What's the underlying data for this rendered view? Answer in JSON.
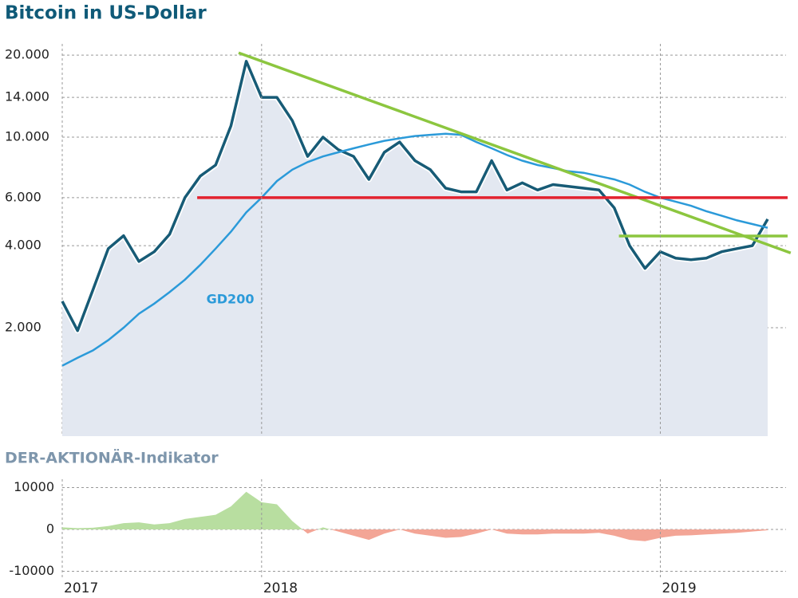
{
  "chart_data": [
    {
      "type": "line",
      "title": "Bitcoin in US-Dollar",
      "log_scale": true,
      "grid": true,
      "ylim": [
        800,
        22000
      ],
      "yticks": [
        {
          "value": 2000,
          "label": "2.000"
        },
        {
          "value": 4000,
          "label": "4.000"
        },
        {
          "value": 6000,
          "label": "6.000"
        },
        {
          "value": 10000,
          "label": "10.000"
        },
        {
          "value": 14000,
          "label": "14.000"
        },
        {
          "value": 20000,
          "label": "20.000"
        }
      ],
      "series": [
        {
          "color": "#175b76",
          "fill": "#e3e8f1",
          "values": [
            2500,
            1950,
            2750,
            3900,
            4350,
            3500,
            3800,
            4400,
            6000,
            7200,
            7900,
            11000,
            19000,
            14000,
            14000,
            11500,
            8500,
            10000,
            9000,
            8500,
            7000,
            8800,
            9600,
            8200,
            7600,
            6500,
            6300,
            6300,
            8200,
            6400,
            6800,
            6400,
            6700,
            6600,
            6500,
            6400,
            5500,
            4000,
            3300,
            3800,
            3600,
            3550,
            3600,
            3800,
            3900,
            4000,
            5000
          ]
        },
        {
          "name": "GD200",
          "color": "#2b9ad9",
          "values": [
            1450,
            1550,
            1650,
            1800,
            2000,
            2250,
            2450,
            2700,
            3000,
            3400,
            3900,
            4500,
            5300,
            6000,
            6900,
            7600,
            8100,
            8500,
            8800,
            9100,
            9400,
            9700,
            9900,
            10100,
            10200,
            10300,
            10200,
            9600,
            9100,
            8600,
            8200,
            7900,
            7700,
            7500,
            7400,
            7200,
            7000,
            6700,
            6300,
            6000,
            5800,
            5600,
            5350,
            5150,
            4950,
            4800,
            4650
          ]
        }
      ],
      "trend_lines": [
        {
          "color": "#8cc63f",
          "x": [
            11.5,
            47.5
          ],
          "values": [
            20400,
            3760
          ]
        },
        {
          "color": "#e3222f",
          "x": [
            8.8,
            47.3
          ],
          "values": [
            6000,
            6000
          ]
        },
        {
          "color": "#8cc63f",
          "x": [
            36.3,
            47.3
          ],
          "values": [
            4340,
            4340
          ]
        }
      ]
    },
    {
      "type": "area",
      "title": "DER-AKTIONÄR-Indikator",
      "grid": true,
      "positive_color": "#b8dea0",
      "negative_color": "#f3a596",
      "ylim": [
        -12000,
        12000
      ],
      "yticks": [
        -10000,
        0,
        10000
      ],
      "categories": [
        "2017",
        null,
        null,
        null,
        null,
        null,
        null,
        null,
        null,
        null,
        null,
        null,
        null,
        "2018",
        null,
        null,
        null,
        null,
        null,
        null,
        null,
        null,
        null,
        null,
        null,
        null,
        null,
        null,
        null,
        null,
        null,
        null,
        null,
        null,
        null,
        null,
        null,
        null,
        null,
        "2019",
        null,
        null,
        null,
        null,
        null,
        null,
        null
      ],
      "values": [
        500,
        300,
        400,
        800,
        1500,
        1700,
        1200,
        1500,
        2500,
        3000,
        3500,
        5500,
        9000,
        6500,
        6000,
        2000,
        -1000,
        500,
        -500,
        -1500,
        -2500,
        -1000,
        0,
        -1000,
        -1500,
        -2000,
        -1800,
        -1000,
        0,
        -1000,
        -1200,
        -1200,
        -1000,
        -1000,
        -1000,
        -800,
        -1500,
        -2500,
        -2800,
        -2000,
        -1500,
        -1400,
        -1200,
        -1000,
        -800,
        -500,
        -200
      ]
    }
  ]
}
